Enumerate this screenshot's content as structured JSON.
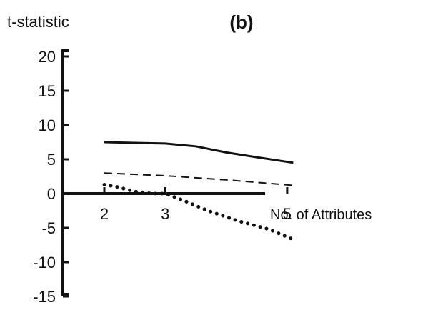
{
  "chart_data": {
    "type": "line",
    "title": "(b)",
    "ylabel": "t-statistic",
    "xlabel": "No. of Attributes",
    "x_ticks": [
      2,
      3,
      5
    ],
    "y_ticks": [
      20,
      15,
      10,
      5,
      0,
      -5,
      -10,
      -15
    ],
    "ylim": [
      -15,
      20
    ],
    "xlim": [
      1.15,
      5.5
    ],
    "grid": false,
    "series": [
      {
        "style": "solid",
        "x": [
          2,
          2.5,
          3,
          3.5,
          4,
          4.5,
          5.1
        ],
        "y": [
          7.5,
          7.4,
          7.3,
          6.9,
          6.0,
          5.3,
          4.5
        ]
      },
      {
        "style": "dashed",
        "x": [
          2,
          3,
          4,
          5.1
        ],
        "y": [
          3.0,
          2.6,
          2.0,
          1.2
        ]
      },
      {
        "style": "dotted",
        "x": [
          2,
          2.2,
          2.5,
          2.8,
          3,
          3.3,
          3.7,
          4.2,
          4.7,
          5.1
        ],
        "y": [
          1.3,
          1.0,
          0.3,
          0.0,
          0.0,
          -1.0,
          -2.5,
          -4.0,
          -5.2,
          -6.7
        ]
      }
    ]
  }
}
